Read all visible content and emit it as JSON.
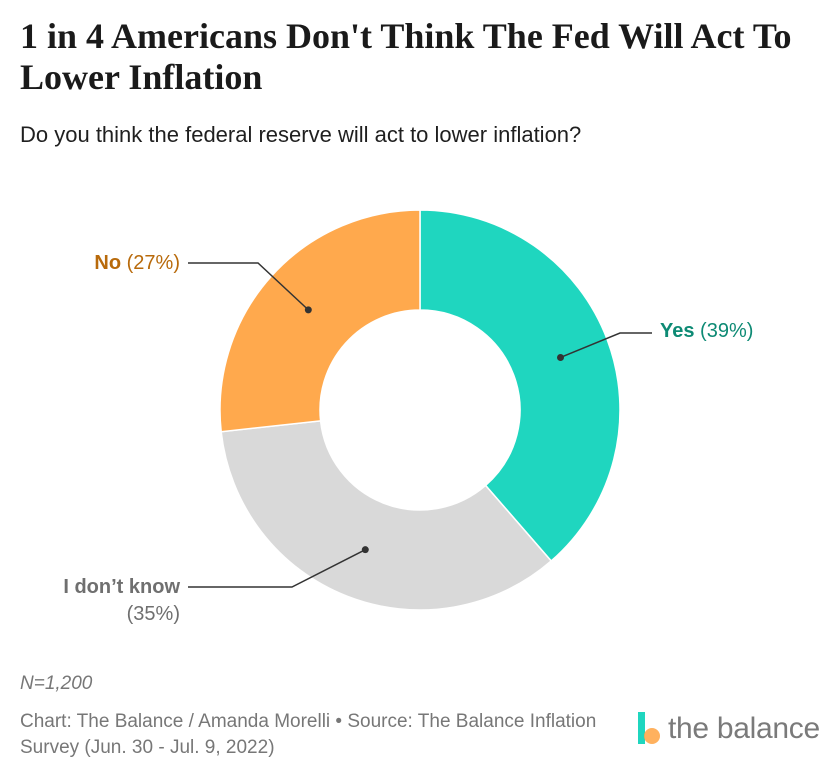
{
  "title": "1 in 4 Americans Don't Think The Fed Will Act To Lower Inflation",
  "subtitle": "Do you think the federal reserve will act to lower inflation?",
  "chart_data": {
    "type": "pie",
    "donut": true,
    "slices": [
      {
        "label": "Yes",
        "value": 39,
        "display": "(39%)",
        "color": "#1fd6bf",
        "text_color": "#0d8a74"
      },
      {
        "label": "I don’t know",
        "value": 35,
        "display": "(35%)",
        "color": "#d9d9d9",
        "text_color": "#6f6f6f"
      },
      {
        "label": "No",
        "value": 27,
        "display": "(27%)",
        "color": "#ffa94d",
        "text_color": "#b86a0b"
      }
    ]
  },
  "footer": {
    "note": "N=1,200",
    "source": "Chart: The Balance / Amanda Morelli • Source: The Balance Inflation Survey (Jun. 30 - Jul. 9, 2022)",
    "brand": "the balance"
  }
}
